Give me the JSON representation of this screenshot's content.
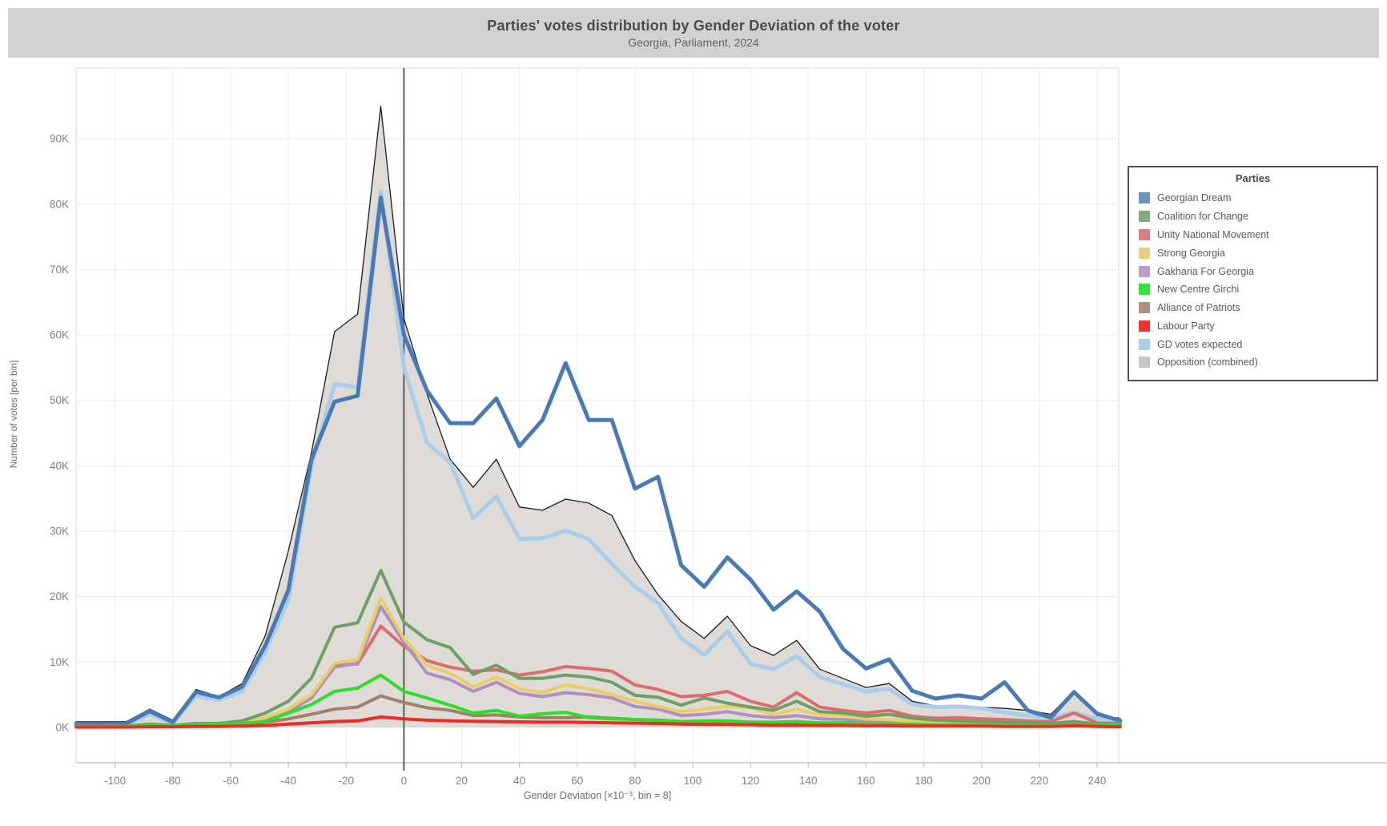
{
  "header": {
    "title": "Parties' votes distribution by Gender Deviation of the voter",
    "subtitle": "Georgia, Parliament, 2024"
  },
  "legend": {
    "title": "Parties",
    "items": [
      {
        "label": "Georgian Dream",
        "color": "#6b92bd"
      },
      {
        "label": "Coalition for Change",
        "color": "#82ab7c"
      },
      {
        "label": "Unity National Movement",
        "color": "#dd7e7e"
      },
      {
        "label": "Strong Georgia",
        "color": "#e9d07e"
      },
      {
        "label": "Gakharia For Georgia",
        "color": "#bd9cca"
      },
      {
        "label": "New Centre Girchi",
        "color": "#2fe53a"
      },
      {
        "label": "Alliance of Patriots",
        "color": "#ac927e"
      },
      {
        "label": "Labour Party",
        "color": "#f8312e"
      },
      {
        "label": "GD votes expected",
        "color": "#a9cdea"
      },
      {
        "label": "Opposition (combined)",
        "color": "#c9c5c0"
      }
    ]
  },
  "chart_data": {
    "type": "line",
    "title": "Parties' votes distribution by Gender Deviation of the voter",
    "subtitle": "Georgia, Parliament, 2024",
    "xlabel": "Gender Deviation [×10⁻³, bin = 8]",
    "ylabel": "Number of votes [per bin]",
    "bin_width": 8,
    "x_range": [
      -113.5,
      247.5
    ],
    "y_range_k": [
      -5.4,
      100.8
    ],
    "zero_line_x": 0,
    "x_ticks": {
      "values": [
        -100,
        -80,
        -60,
        -40,
        -20,
        0,
        20,
        40,
        60,
        80,
        100,
        120,
        140,
        160,
        180,
        200,
        220,
        240
      ],
      "labels": [
        "-100",
        "-80",
        "-60",
        "-40",
        "-20",
        "0",
        "20",
        "40",
        "60",
        "80",
        "100",
        "120",
        "140",
        "160",
        "180",
        "200",
        "220",
        "240"
      ]
    },
    "y_ticks": {
      "values": [
        0,
        10,
        20,
        30,
        40,
        50,
        60,
        70,
        80,
        90
      ],
      "labels": [
        "0K",
        "10K",
        "20K",
        "30K",
        "40K",
        "50K",
        "60K",
        "70K",
        "80K",
        "90K"
      ]
    },
    "x": [
      -104,
      -96,
      -88,
      -80,
      -72,
      -64,
      -56,
      -48,
      -40,
      -32,
      -24,
      -16,
      -8,
      0,
      8,
      16,
      24,
      32,
      40,
      48,
      56,
      64,
      72,
      80,
      88,
      96,
      104,
      112,
      120,
      128,
      136,
      144,
      152,
      160,
      168,
      176,
      184,
      192,
      200,
      208,
      216,
      224,
      232,
      240,
      248
    ],
    "series": [
      {
        "id": "opposition",
        "name": "Opposition (combined)",
        "kind": "area",
        "color": "#dbd7d2",
        "stroke": "#1c1c1c",
        "line_width": 1.3,
        "values_k": [
          0.9,
          0.9,
          2.8,
          1.1,
          5.8,
          4.7,
          6.7,
          14.0,
          27.0,
          42.0,
          60.5,
          63.2,
          95.0,
          62.5,
          51.0,
          41.0,
          36.7,
          41.0,
          33.7,
          33.2,
          34.9,
          34.3,
          32.4,
          25.5,
          20.3,
          16.2,
          13.6,
          17.0,
          12.5,
          11.0,
          13.3,
          8.9,
          7.5,
          6.1,
          6.7,
          4.0,
          3.3,
          3.4,
          3.1,
          2.9,
          2.6,
          2.0,
          5.5,
          1.8,
          1.4
        ]
      },
      {
        "id": "gd_expected",
        "name": "GD votes expected",
        "kind": "line",
        "color": "#a9cdea",
        "line_width": 5,
        "values_k": [
          0.5,
          0.5,
          2.0,
          0.6,
          4.8,
          4.2,
          5.5,
          11.5,
          19.5,
          40.0,
          52.5,
          52.0,
          82.0,
          55.0,
          43.5,
          40.5,
          32.0,
          35.3,
          28.8,
          28.9,
          30.1,
          28.8,
          25.0,
          21.5,
          19.0,
          13.6,
          11.1,
          14.7,
          9.7,
          8.9,
          10.9,
          7.7,
          6.6,
          5.5,
          5.9,
          3.5,
          3.1,
          3.2,
          2.9,
          2.3,
          1.8,
          1.5,
          2.3,
          1.3,
          1.1
        ]
      },
      {
        "id": "georgian_dream",
        "name": "Georgian Dream",
        "kind": "line",
        "color": "#4a7ab5",
        "line_width": 5,
        "values_k": [
          0.6,
          0.6,
          2.5,
          0.8,
          5.4,
          4.6,
          6.2,
          12.5,
          21.0,
          41.0,
          49.8,
          50.7,
          81.0,
          60.0,
          51.5,
          46.5,
          46.5,
          50.3,
          43.0,
          47.0,
          55.7,
          47.0,
          47.0,
          36.5,
          38.3,
          24.8,
          21.5,
          26.0,
          22.6,
          18.0,
          20.8,
          17.7,
          12.0,
          9.0,
          10.4,
          5.6,
          4.4,
          4.9,
          4.4,
          6.9,
          2.6,
          1.5,
          5.4,
          2.1,
          1.0
        ]
      },
      {
        "id": "unity_national_movement",
        "name": "Unity National Movement",
        "kind": "line",
        "color": "#dd6d6d",
        "line_width": 4,
        "values_k": [
          0.1,
          0.1,
          0.3,
          0.2,
          0.4,
          0.4,
          0.6,
          1.5,
          2.5,
          4.5,
          9.5,
          9.7,
          15.5,
          12.4,
          10.2,
          9.2,
          8.6,
          8.8,
          8.0,
          8.5,
          9.3,
          9.0,
          8.6,
          6.5,
          5.8,
          4.7,
          4.9,
          5.5,
          4.0,
          3.1,
          5.3,
          3.1,
          2.6,
          2.2,
          2.6,
          1.7,
          1.4,
          1.5,
          1.3,
          1.2,
          1.0,
          0.9,
          2.2,
          0.7,
          0.6
        ]
      },
      {
        "id": "gakharia_for_georgia",
        "name": "Gakharia For Georgia",
        "kind": "line",
        "color": "#b18fc2",
        "line_width": 4,
        "values_k": [
          0.1,
          0.1,
          0.2,
          0.2,
          0.3,
          0.3,
          0.6,
          1.3,
          2.4,
          4.5,
          9.2,
          9.8,
          18.5,
          13.0,
          8.3,
          7.3,
          5.5,
          6.9,
          5.2,
          4.7,
          5.3,
          5.0,
          4.5,
          3.2,
          2.8,
          1.8,
          2.0,
          2.4,
          1.8,
          1.5,
          1.8,
          1.3,
          1.2,
          0.9,
          0.8,
          0.6,
          0.6,
          0.5,
          0.5,
          0.4,
          0.4,
          0.3,
          0.4,
          0.3,
          0.2
        ]
      },
      {
        "id": "strong_georgia",
        "name": "Strong Georgia",
        "kind": "line",
        "color": "#e9ce65",
        "line_width": 4,
        "values_k": [
          0.1,
          0.1,
          0.3,
          0.2,
          0.4,
          0.4,
          0.7,
          1.5,
          2.8,
          5.0,
          9.8,
          10.4,
          19.8,
          13.6,
          9.5,
          8.3,
          6.2,
          7.7,
          5.9,
          5.3,
          6.5,
          5.9,
          5.0,
          4.0,
          3.2,
          2.4,
          2.8,
          3.2,
          3.0,
          2.0,
          2.8,
          1.9,
          1.8,
          1.3,
          1.2,
          0.9,
          0.8,
          0.7,
          0.6,
          0.6,
          0.5,
          0.4,
          0.6,
          0.3,
          0.3
        ]
      },
      {
        "id": "coalition_for_change",
        "name": "Coalition for Change",
        "kind": "line",
        "color": "#6d9f66",
        "line_width": 4,
        "values_k": [
          0.2,
          0.2,
          0.5,
          0.3,
          0.6,
          0.6,
          1.0,
          2.2,
          4.0,
          7.5,
          15.3,
          16.0,
          24.0,
          16.1,
          13.4,
          12.2,
          8.1,
          9.5,
          7.5,
          7.5,
          8.0,
          7.7,
          6.9,
          4.9,
          4.6,
          3.4,
          4.5,
          3.7,
          3.1,
          2.6,
          4.0,
          2.4,
          2.2,
          1.7,
          2.0,
          1.4,
          1.1,
          1.0,
          0.9,
          0.8,
          0.7,
          0.6,
          0.9,
          0.5,
          0.5
        ]
      },
      {
        "id": "alliance_of_patriots",
        "name": "Alliance of Patriots",
        "kind": "line",
        "color": "#9d8168",
        "line_width": 4,
        "values_k": [
          0.1,
          0.1,
          0.2,
          0.15,
          0.3,
          0.3,
          0.5,
          0.8,
          1.3,
          2.0,
          2.8,
          3.1,
          4.8,
          3.8,
          3.0,
          2.6,
          1.8,
          1.9,
          1.6,
          1.5,
          1.5,
          1.6,
          1.4,
          1.2,
          1.1,
          0.9,
          0.9,
          0.9,
          0.7,
          0.7,
          0.7,
          0.6,
          0.6,
          0.5,
          0.4,
          0.4,
          0.4,
          0.3,
          0.3,
          0.3,
          0.3,
          0.2,
          0.3,
          0.2,
          0.2
        ]
      },
      {
        "id": "new_centre_girchi",
        "name": "New Centre Girchi",
        "kind": "line",
        "color": "#2ade2a",
        "line_width": 4,
        "values_k": [
          0.1,
          0.15,
          0.3,
          0.2,
          0.4,
          0.5,
          0.6,
          0.9,
          2.2,
          3.5,
          5.5,
          6.0,
          8.0,
          5.5,
          4.5,
          3.4,
          2.2,
          2.6,
          1.7,
          2.1,
          2.3,
          1.5,
          1.3,
          1.2,
          1.1,
          0.9,
          1.0,
          1.0,
          0.8,
          0.8,
          0.9,
          0.7,
          0.7,
          0.6,
          0.5,
          0.5,
          0.4,
          0.4,
          0.4,
          0.3,
          0.3,
          0.3,
          0.4,
          0.3,
          0.3
        ]
      },
      {
        "id": "labour_party",
        "name": "Labour Party",
        "kind": "line",
        "color": "#ef2c24",
        "line_width": 4,
        "values_k": [
          0.05,
          0.05,
          0.1,
          0.1,
          0.15,
          0.15,
          0.2,
          0.3,
          0.5,
          0.7,
          0.9,
          1.0,
          1.6,
          1.3,
          1.1,
          1.0,
          0.95,
          0.9,
          0.85,
          0.8,
          0.8,
          0.75,
          0.7,
          0.65,
          0.6,
          0.5,
          0.45,
          0.45,
          0.4,
          0.35,
          0.35,
          0.3,
          0.3,
          0.25,
          0.25,
          0.2,
          0.2,
          0.2,
          0.2,
          0.15,
          0.15,
          0.15,
          0.25,
          0.15,
          0.1
        ]
      }
    ]
  }
}
